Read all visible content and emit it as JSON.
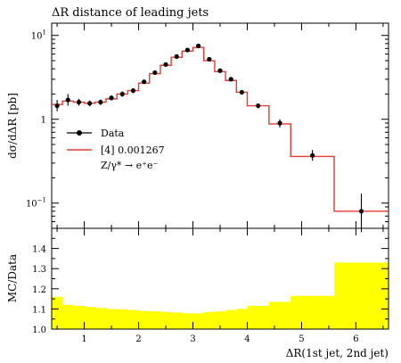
{
  "chart_data": [
    {
      "type": "line",
      "title": "ΔR distance of leading jets",
      "ylabel": "dσ/dΔR [pb]",
      "xlabel": "",
      "yscale": "log",
      "xlim": [
        0.4,
        6.6
      ],
      "ylim": [
        0.05,
        14
      ],
      "y_ticks": [
        {
          "value": 0.1,
          "base": "10",
          "exp": "−1"
        },
        {
          "value": 1,
          "label": "1"
        },
        {
          "value": 10,
          "base": "10",
          "exp": "1"
        }
      ],
      "legend_position": "middle-left",
      "series": [
        {
          "name": "Data",
          "kind": "points_with_errors",
          "color": "#000000",
          "x": [
            0.5,
            0.7,
            0.9,
            1.1,
            1.3,
            1.5,
            1.7,
            1.9,
            2.1,
            2.3,
            2.5,
            2.7,
            2.9,
            3.1,
            3.3,
            3.5,
            3.7,
            3.9,
            4.2,
            4.6,
            5.2,
            6.1
          ],
          "y": [
            1.45,
            1.7,
            1.6,
            1.55,
            1.6,
            1.8,
            2.0,
            2.2,
            2.8,
            3.6,
            4.5,
            5.6,
            6.7,
            7.5,
            5.2,
            3.8,
            3.0,
            2.1,
            1.45,
            0.9,
            0.37,
            0.08
          ],
          "y_err_low": [
            0.2,
            0.25,
            0.15,
            0.12,
            0.12,
            0.12,
            0.15,
            0.15,
            0.15,
            0.2,
            0.25,
            0.3,
            0.3,
            0.35,
            0.3,
            0.2,
            0.15,
            0.12,
            0.1,
            0.1,
            0.05,
            0.035
          ],
          "y_err_high": [
            0.25,
            0.3,
            0.15,
            0.12,
            0.12,
            0.12,
            0.15,
            0.15,
            0.15,
            0.2,
            0.25,
            0.3,
            0.3,
            0.35,
            0.3,
            0.2,
            0.15,
            0.12,
            0.1,
            0.1,
            0.06,
            0.05
          ]
        },
        {
          "name": "[4] 0.001267",
          "kind": "step_histogram",
          "color": "#e8392f",
          "bin_edges": [
            0.4,
            0.6,
            0.8,
            1.0,
            1.2,
            1.4,
            1.6,
            1.8,
            2.0,
            2.2,
            2.4,
            2.6,
            2.8,
            3.0,
            3.2,
            3.4,
            3.6,
            3.8,
            4.0,
            4.4,
            4.8,
            5.6,
            6.6
          ],
          "values": [
            1.5,
            1.65,
            1.6,
            1.55,
            1.6,
            1.75,
            2.0,
            2.2,
            2.7,
            3.5,
            4.4,
            5.5,
            6.5,
            7.2,
            5.0,
            3.7,
            2.9,
            2.1,
            1.45,
            0.88,
            0.36,
            0.08
          ]
        }
      ],
      "legend_extra": "Z/γ* → e⁺e⁻"
    },
    {
      "type": "bar",
      "ylabel": "MC/Data",
      "xlabel": "ΔR(1st jet, 2nd jet)",
      "xlim": [
        0.4,
        6.6
      ],
      "ylim": [
        1.0,
        1.5
      ],
      "x_ticks": [
        1,
        2,
        3,
        4,
        5,
        6
      ],
      "y_ticks": [
        1.0,
        1.1,
        1.2,
        1.3,
        1.4
      ],
      "color": "#ffff00",
      "bin_edges": [
        0.4,
        0.6,
        0.8,
        1.0,
        1.2,
        1.4,
        1.6,
        1.8,
        2.0,
        2.2,
        2.4,
        2.6,
        2.8,
        3.0,
        3.2,
        3.4,
        3.6,
        3.8,
        4.0,
        4.4,
        4.8,
        5.6,
        6.6
      ],
      "values": [
        1.16,
        1.12,
        1.115,
        1.11,
        1.105,
        1.1,
        1.098,
        1.095,
        1.09,
        1.088,
        1.085,
        1.082,
        1.078,
        1.078,
        1.085,
        1.088,
        1.095,
        1.1,
        1.115,
        1.135,
        1.165,
        1.33
      ]
    }
  ]
}
